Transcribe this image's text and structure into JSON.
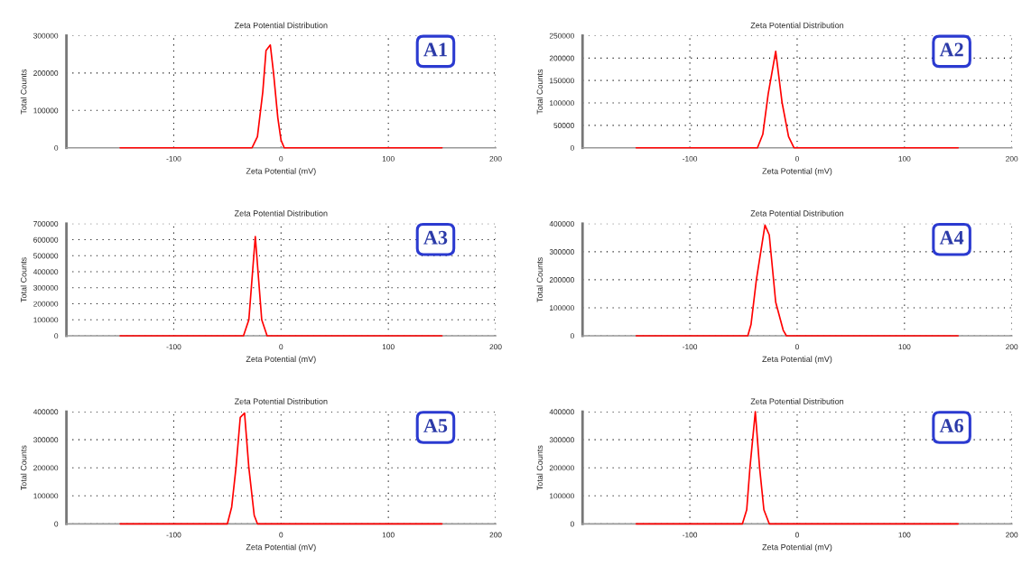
{
  "chart_data": [
    {
      "type": "line",
      "title": "Zeta Potential Distribution",
      "xlabel": "Zeta Potential (mV)",
      "ylabel": "Total Counts",
      "annotations": [
        "A1"
      ],
      "xlim": [
        -200,
        200
      ],
      "xticks": [
        -100,
        0,
        100,
        200
      ],
      "ylim": [
        0,
        300000
      ],
      "yticks": [
        0,
        100000,
        200000,
        300000
      ],
      "grid": true,
      "marker": "none",
      "line_style": "solid",
      "series": [
        {
          "color": "#ff0000",
          "x": [
            -150,
            -27,
            -22,
            -17,
            -14,
            -10,
            -7,
            -3,
            0,
            3,
            150
          ],
          "values": [
            0,
            0,
            30000,
            150000,
            260000,
            275000,
            200000,
            80000,
            20000,
            0,
            0
          ]
        }
      ]
    },
    {
      "type": "line",
      "title": "Zeta Potential Distribution",
      "xlabel": "Zeta Potential (mV)",
      "ylabel": "Total Counts",
      "annotations": [
        "A2"
      ],
      "xlim": [
        -200,
        200
      ],
      "xticks": [
        -100,
        0,
        100,
        200
      ],
      "ylim": [
        0,
        250000
      ],
      "yticks": [
        0,
        50000,
        100000,
        150000,
        200000,
        250000
      ],
      "grid": true,
      "marker": "none",
      "line_style": "solid",
      "series": [
        {
          "color": "#ff0000",
          "x": [
            -150,
            -37,
            -32,
            -27,
            -20,
            -14,
            -8,
            -3,
            150
          ],
          "values": [
            0,
            0,
            30000,
            120000,
            215000,
            100000,
            25000,
            0,
            0
          ]
        }
      ]
    },
    {
      "type": "line",
      "title": "Zeta Potential Distribution",
      "xlabel": "Zeta Potential (mV)",
      "ylabel": "Total Counts",
      "annotations": [
        "A3"
      ],
      "xlim": [
        -200,
        200
      ],
      "xticks": [
        -100,
        0,
        100,
        200
      ],
      "ylim": [
        0,
        700000
      ],
      "yticks": [
        0,
        100000,
        200000,
        300000,
        400000,
        500000,
        600000,
        700000
      ],
      "grid": true,
      "marker": "none",
      "line_style": "solid",
      "series": [
        {
          "color": "#ff0000",
          "x": [
            -150,
            -35,
            -30,
            -24,
            -18,
            -13,
            150
          ],
          "values": [
            0,
            0,
            100000,
            620000,
            100000,
            0,
            0
          ]
        }
      ]
    },
    {
      "type": "line",
      "title": "Zeta Potential Distribution",
      "xlabel": "Zeta Potential (mV)",
      "ylabel": "Total Counts",
      "annotations": [
        "A4"
      ],
      "xlim": [
        -200,
        200
      ],
      "xticks": [
        -100,
        0,
        100,
        200
      ],
      "ylim": [
        0,
        400000
      ],
      "yticks": [
        0,
        100000,
        200000,
        300000,
        400000
      ],
      "grid": true,
      "marker": "none",
      "line_style": "solid",
      "series": [
        {
          "color": "#ff0000",
          "x": [
            -150,
            -46,
            -43,
            -38,
            -30,
            -26,
            -20,
            -13,
            -10,
            150
          ],
          "values": [
            0,
            0,
            40000,
            200000,
            395000,
            360000,
            120000,
            20000,
            0,
            0
          ]
        }
      ]
    },
    {
      "type": "line",
      "title": "Zeta Potential Distribution",
      "xlabel": "Zeta Potential (mV)",
      "ylabel": "Total Counts",
      "annotations": [
        "A5"
      ],
      "xlim": [
        -200,
        200
      ],
      "xticks": [
        -100,
        0,
        100,
        200
      ],
      "ylim": [
        0,
        400000
      ],
      "yticks": [
        0,
        100000,
        200000,
        300000,
        400000
      ],
      "grid": true,
      "marker": "none",
      "line_style": "solid",
      "series": [
        {
          "color": "#ff0000",
          "x": [
            -150,
            -50,
            -46,
            -42,
            -38,
            -34,
            -30,
            -25,
            -22,
            150
          ],
          "values": [
            0,
            0,
            60000,
            200000,
            380000,
            395000,
            200000,
            30000,
            0,
            0
          ]
        }
      ]
    },
    {
      "type": "line",
      "title": "Zeta Potential Distribution",
      "xlabel": "Zeta Potential (mV)",
      "ylabel": "Total Counts",
      "annotations": [
        "A6"
      ],
      "xlim": [
        -200,
        200
      ],
      "xticks": [
        -100,
        0,
        100,
        200
      ],
      "ylim": [
        0,
        400000
      ],
      "yticks": [
        0,
        100000,
        200000,
        300000,
        400000
      ],
      "grid": true,
      "marker": "none",
      "line_style": "solid",
      "series": [
        {
          "color": "#ff0000",
          "x": [
            -150,
            -51,
            -47,
            -44,
            -39,
            -35,
            -31,
            -26,
            150
          ],
          "values": [
            0,
            0,
            50000,
            200000,
            400000,
            200000,
            50000,
            0,
            0
          ]
        }
      ]
    }
  ]
}
